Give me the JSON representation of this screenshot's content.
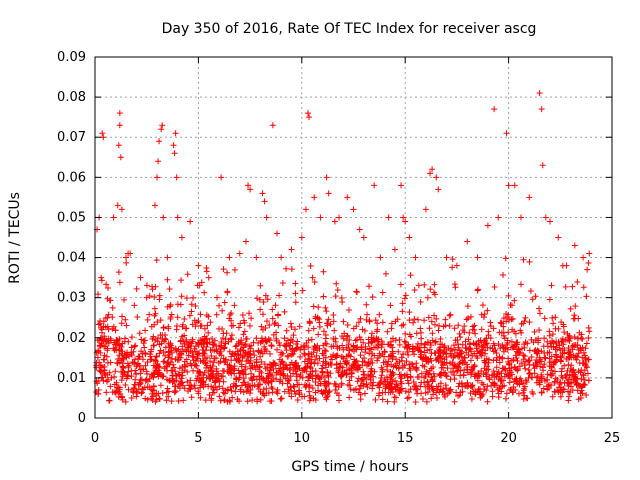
{
  "chart_data": {
    "type": "scatter",
    "title": "Day 350 of 2016, Rate Of TEC Index for receiver ascg",
    "xlabel": "GPS time / hours",
    "ylabel": "ROTI / TECUs",
    "xlim": [
      0,
      25
    ],
    "ylim": [
      0,
      0.09
    ],
    "xticks": [
      0,
      5,
      10,
      15,
      20,
      25
    ],
    "xtick_labels": [
      "0",
      "5",
      "10",
      "15",
      "20",
      "25"
    ],
    "yticks": [
      0,
      0.01,
      0.02,
      0.03,
      0.04,
      0.05,
      0.06,
      0.07,
      0.08,
      0.09
    ],
    "ytick_labels": [
      "0",
      "0.01",
      "0.02",
      "0.03",
      "0.04",
      "0.05",
      "0.06",
      "0.07",
      "0.08",
      "0.09"
    ],
    "grid": true,
    "marker": "+",
    "series": [
      {
        "name": "ROTI",
        "color": "#ff0000",
        "notes": "Dense cloud of points (mostly 0.005-0.03 TECU/s) spanning 0-23.9 h; representative points listed",
        "points": [
          [
            0.1,
            0.047
          ],
          [
            0.2,
            0.05
          ],
          [
            0.3,
            0.035
          ],
          [
            0.35,
            0.071
          ],
          [
            0.4,
            0.07
          ],
          [
            0.6,
            0.025
          ],
          [
            0.9,
            0.05
          ],
          [
            1.1,
            0.053
          ],
          [
            1.15,
            0.068
          ],
          [
            1.2,
            0.076
          ],
          [
            1.2,
            0.073
          ],
          [
            1.25,
            0.065
          ],
          [
            1.3,
            0.052
          ],
          [
            1.5,
            0.04
          ],
          [
            1.6,
            0.041
          ],
          [
            1.7,
            0.041
          ],
          [
            2.2,
            0.035
          ],
          [
            2.5,
            0.03
          ],
          [
            2.9,
            0.053
          ],
          [
            3.0,
            0.06
          ],
          [
            3.05,
            0.064
          ],
          [
            3.1,
            0.069
          ],
          [
            3.2,
            0.072
          ],
          [
            3.25,
            0.073
          ],
          [
            3.3,
            0.05
          ],
          [
            3.5,
            0.04
          ],
          [
            3.8,
            0.068
          ],
          [
            3.85,
            0.066
          ],
          [
            3.9,
            0.071
          ],
          [
            3.95,
            0.06
          ],
          [
            4.0,
            0.05
          ],
          [
            4.2,
            0.045
          ],
          [
            4.6,
            0.049
          ],
          [
            5.0,
            0.038
          ],
          [
            5.5,
            0.035
          ],
          [
            5.9,
            0.03
          ],
          [
            6.0,
            0.028
          ],
          [
            6.1,
            0.06
          ],
          [
            6.5,
            0.04
          ],
          [
            7.0,
            0.041
          ],
          [
            7.3,
            0.044
          ],
          [
            7.4,
            0.058
          ],
          [
            7.5,
            0.057
          ],
          [
            7.8,
            0.04
          ],
          [
            8.1,
            0.056
          ],
          [
            8.2,
            0.054
          ],
          [
            8.3,
            0.05
          ],
          [
            8.6,
            0.073
          ],
          [
            8.8,
            0.046
          ],
          [
            9.0,
            0.04
          ],
          [
            9.5,
            0.042
          ],
          [
            10.0,
            0.045
          ],
          [
            10.2,
            0.052
          ],
          [
            10.3,
            0.076
          ],
          [
            10.35,
            0.075
          ],
          [
            10.6,
            0.055
          ],
          [
            10.9,
            0.05
          ],
          [
            11.2,
            0.06
          ],
          [
            11.3,
            0.056
          ],
          [
            11.6,
            0.049
          ],
          [
            11.8,
            0.05
          ],
          [
            12.2,
            0.055
          ],
          [
            12.5,
            0.052
          ],
          [
            12.8,
            0.047
          ],
          [
            13.0,
            0.045
          ],
          [
            13.5,
            0.058
          ],
          [
            13.8,
            0.04
          ],
          [
            14.2,
            0.05
          ],
          [
            14.5,
            0.042
          ],
          [
            14.8,
            0.058
          ],
          [
            14.9,
            0.05
          ],
          [
            15.0,
            0.049
          ],
          [
            15.2,
            0.045
          ],
          [
            15.5,
            0.04
          ],
          [
            16.0,
            0.052
          ],
          [
            16.2,
            0.061
          ],
          [
            16.3,
            0.062
          ],
          [
            16.5,
            0.06
          ],
          [
            16.6,
            0.057
          ],
          [
            17.0,
            0.04
          ],
          [
            17.5,
            0.038
          ],
          [
            18.0,
            0.044
          ],
          [
            18.5,
            0.04
          ],
          [
            19.0,
            0.048
          ],
          [
            19.3,
            0.077
          ],
          [
            19.5,
            0.05
          ],
          [
            19.9,
            0.071
          ],
          [
            20.0,
            0.058
          ],
          [
            20.3,
            0.058
          ],
          [
            20.6,
            0.05
          ],
          [
            21.0,
            0.055
          ],
          [
            21.5,
            0.081
          ],
          [
            21.6,
            0.077
          ],
          [
            21.65,
            0.063
          ],
          [
            21.8,
            0.05
          ],
          [
            22.0,
            0.049
          ],
          [
            22.4,
            0.045
          ],
          [
            22.8,
            0.038
          ],
          [
            23.2,
            0.043
          ],
          [
            23.6,
            0.04
          ],
          [
            23.8,
            0.037
          ],
          [
            23.9,
            0.041
          ]
        ]
      }
    ]
  }
}
